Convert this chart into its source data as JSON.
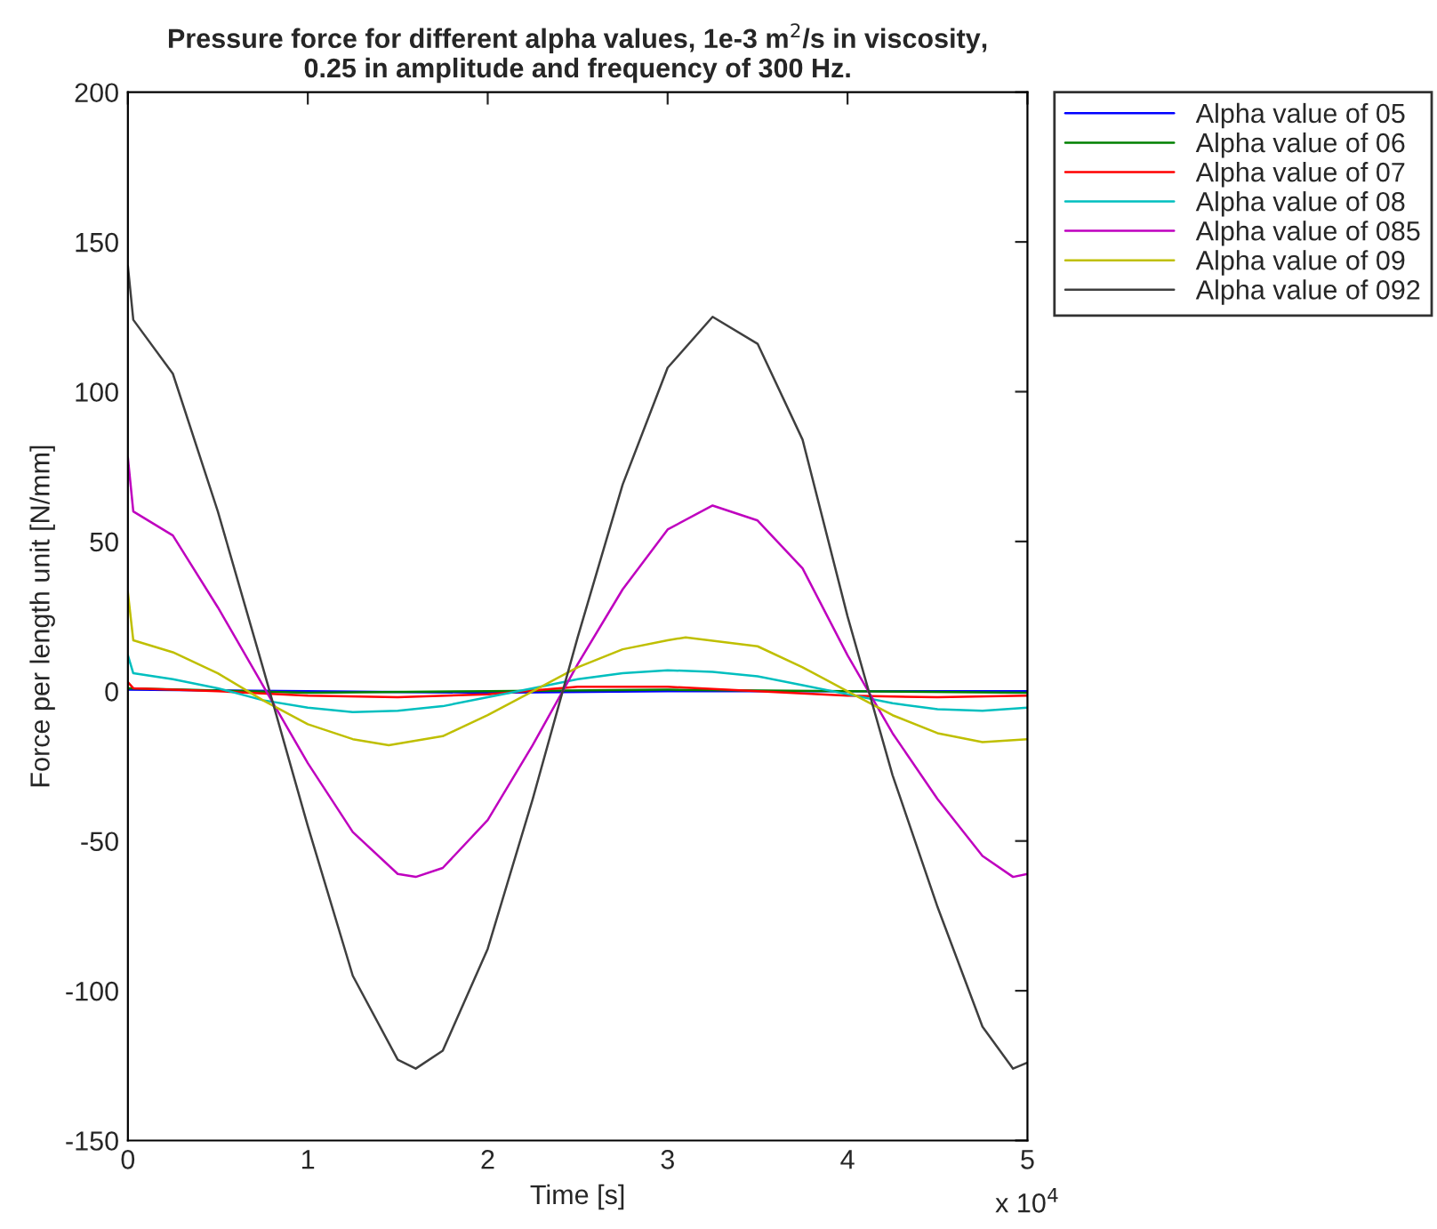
{
  "chart_data": {
    "type": "line",
    "title": "Pressure force for different alpha values, 1e-3 m$^{2}$/s in viscosity,\n0.25 in amplitude and frequency of 300 Hz.",
    "xlabel": "Time [s]",
    "ylabel": "Force per length unit [N/mm]",
    "annotations": [
      "x 10$^{4}$"
    ],
    "xlim": [
      0,
      5
    ],
    "ylim": [
      -150,
      200
    ],
    "xticks": [
      0,
      1,
      2,
      3,
      4,
      5
    ],
    "yticks": [
      -150,
      -100,
      -50,
      0,
      50,
      100,
      150,
      200
    ],
    "grid": false,
    "legend": "top right",
    "line_style": "solid",
    "marker": "none",
    "series": [
      {
        "name": "Alpha value of 05",
        "color": "#0000ff",
        "x": [
          0,
          1,
          2,
          3,
          4,
          5
        ],
        "values": [
          0.5,
          0,
          -0.5,
          0,
          0,
          0
        ]
      },
      {
        "name": "Alpha value of 06",
        "color": "#008000",
        "x": [
          0,
          1,
          2,
          3,
          4,
          5
        ],
        "values": [
          1,
          -0.5,
          0,
          0.5,
          0,
          -0.5
        ]
      },
      {
        "name": "Alpha value of 07",
        "color": "#ff0000",
        "x": [
          0,
          0.03,
          0.5,
          1,
          1.5,
          2,
          2.5,
          3,
          3.5,
          4,
          4.5,
          5
        ],
        "values": [
          3,
          1,
          0,
          -1.5,
          -2,
          -1,
          1.5,
          1.5,
          0,
          -1.5,
          -2,
          -1.5
        ]
      },
      {
        "name": "Alpha value of 08",
        "color": "#00bfbf",
        "x": [
          0,
          0.03,
          0.25,
          0.5,
          0.75,
          1,
          1.25,
          1.5,
          1.75,
          2,
          2.25,
          2.5,
          2.75,
          3,
          3.25,
          3.5,
          3.75,
          4,
          4.25,
          4.5,
          4.75,
          5
        ],
        "values": [
          12,
          6,
          4,
          1,
          -3,
          -5.5,
          -7,
          -6.5,
          -5,
          -2,
          1,
          4,
          6,
          7,
          6.5,
          5,
          2,
          -1,
          -4,
          -6,
          -6.5,
          -5.5
        ]
      },
      {
        "name": "Alpha value of 085",
        "color": "#bf00bf",
        "x": [
          0,
          0.03,
          0.25,
          0.5,
          0.75,
          1,
          1.25,
          1.5,
          1.6,
          1.75,
          2,
          2.25,
          2.5,
          2.75,
          3,
          3.25,
          3.5,
          3.75,
          4,
          4.25,
          4.5,
          4.75,
          4.92,
          5
        ],
        "values": [
          78,
          60,
          52,
          28,
          2,
          -24,
          -47,
          -61,
          -62,
          -59,
          -43,
          -18,
          9,
          34,
          54,
          62,
          57,
          41,
          12,
          -14,
          -36,
          -55,
          -62,
          -61
        ]
      },
      {
        "name": "Alpha value of 09",
        "color": "#bfbf00",
        "x": [
          0,
          0.03,
          0.25,
          0.5,
          0.75,
          1,
          1.25,
          1.45,
          1.75,
          2,
          2.25,
          2.5,
          2.75,
          3,
          3.1,
          3.5,
          3.75,
          4,
          4.25,
          4.5,
          4.75,
          5
        ],
        "values": [
          33,
          17,
          13,
          6,
          -3,
          -11,
          -16,
          -18,
          -15,
          -8,
          0,
          8,
          14,
          17,
          18,
          15,
          8,
          0,
          -8,
          -14,
          -17,
          -16
        ]
      },
      {
        "name": "Alpha value of 092",
        "color": "#3f3f3f",
        "x": [
          0,
          0.03,
          0.25,
          0.5,
          0.75,
          1,
          1.25,
          1.5,
          1.6,
          1.75,
          2,
          2.25,
          2.5,
          2.75,
          3,
          3.25,
          3.5,
          3.75,
          4,
          4.25,
          4.5,
          4.75,
          4.92,
          5
        ],
        "values": [
          142,
          124,
          106,
          60,
          8,
          -45,
          -95,
          -123,
          -126,
          -120,
          -86,
          -36,
          18,
          69,
          108,
          125,
          116,
          84,
          25,
          -28,
          -72,
          -112,
          -126,
          -124
        ]
      }
    ]
  }
}
